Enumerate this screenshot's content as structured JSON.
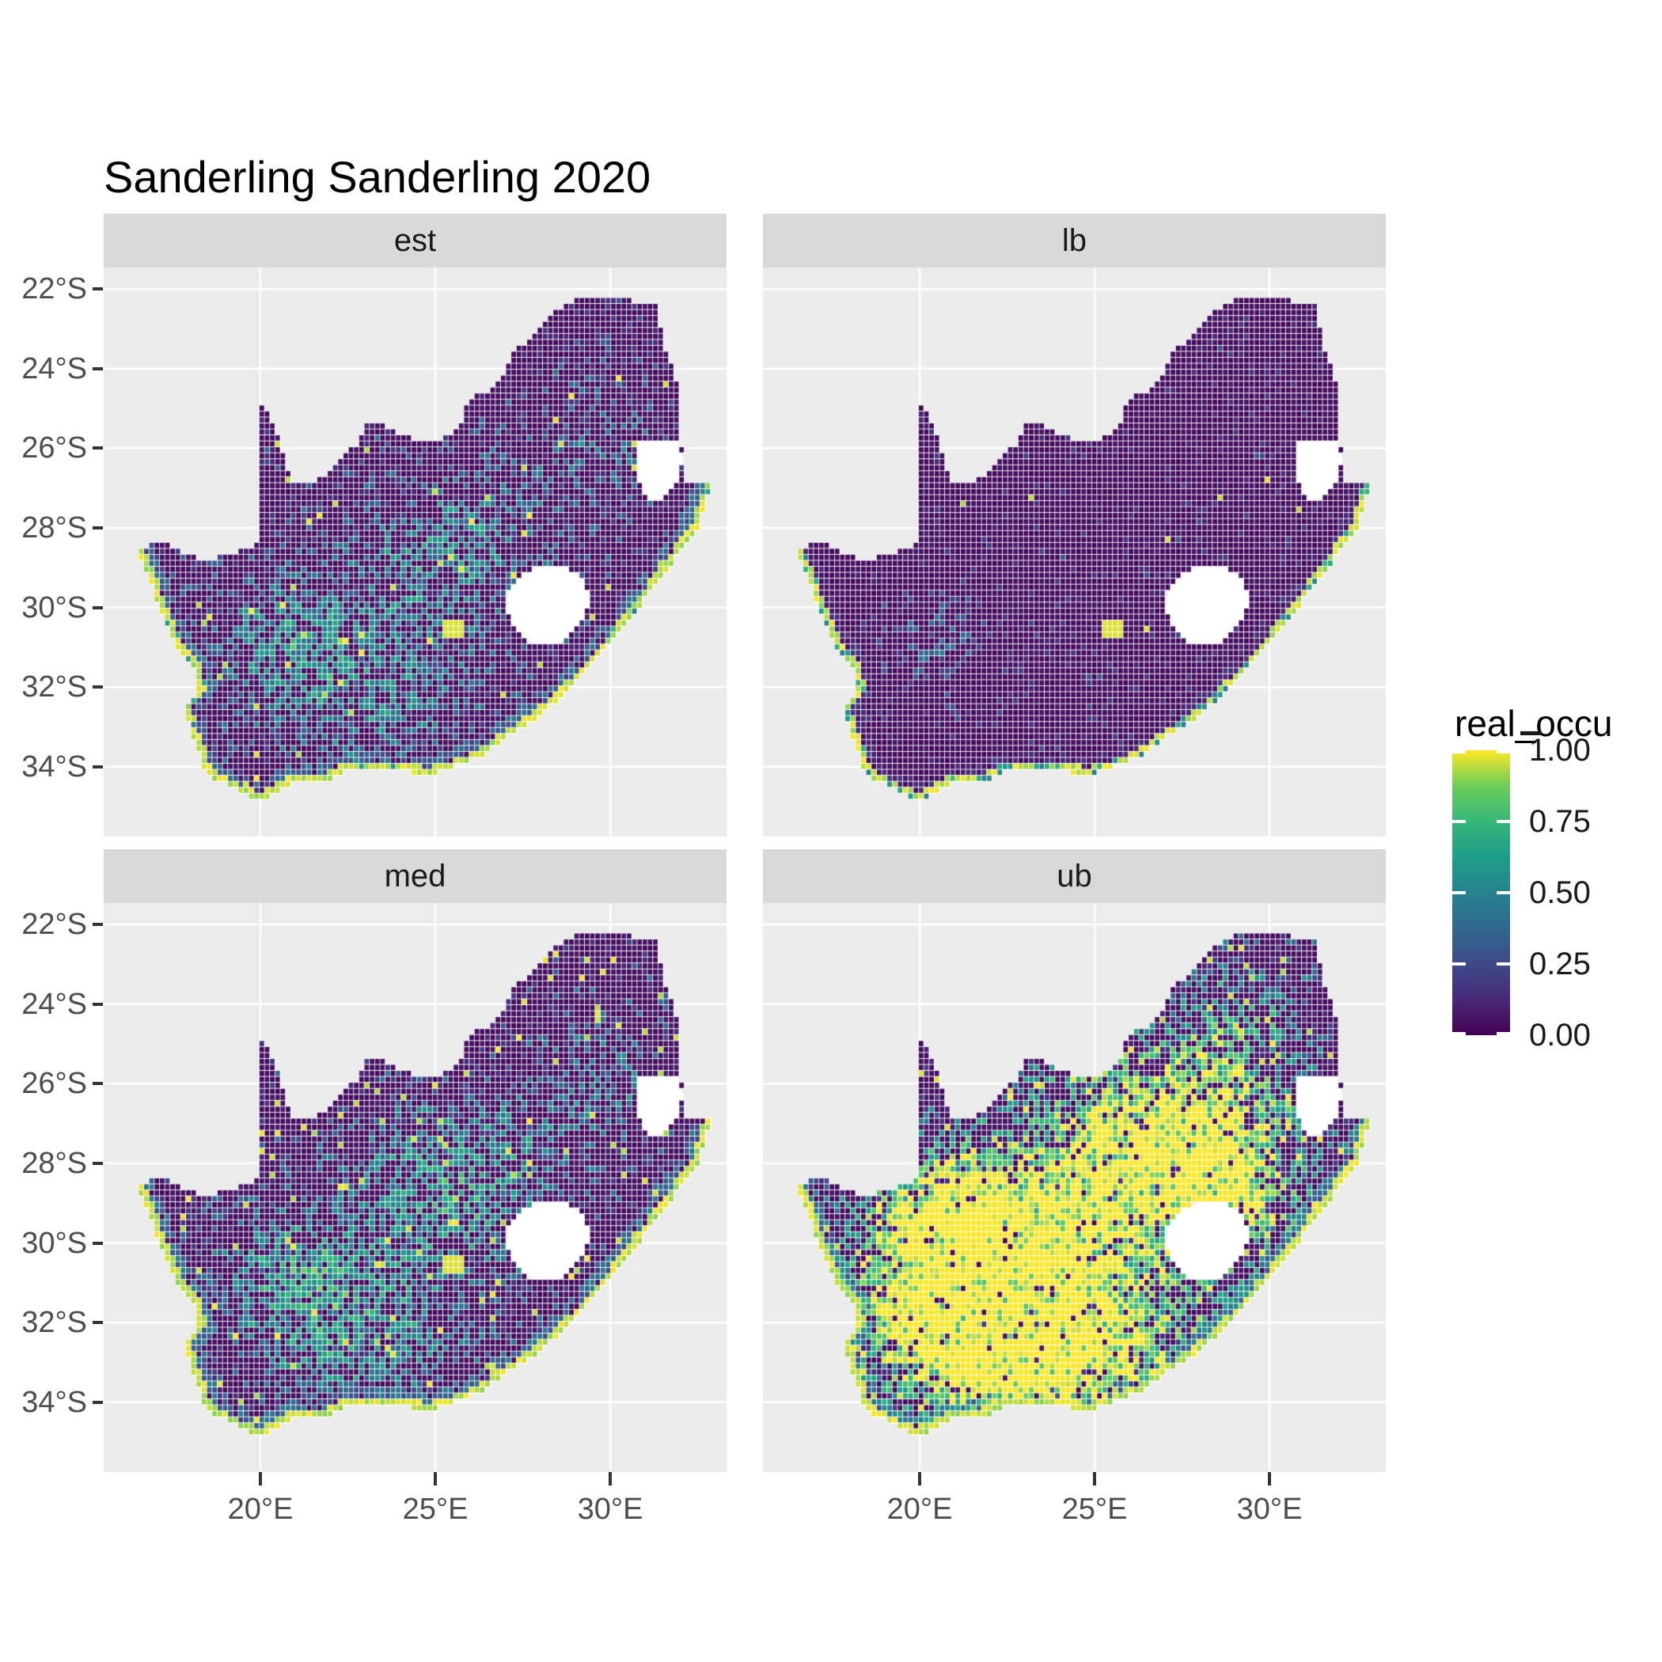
{
  "title": "Sanderling Sanderling 2020",
  "facets": [
    {
      "label": "est",
      "seed": 101,
      "base_p": 0.05,
      "yellow_p": 0.012,
      "blue_p": 0.14,
      "val_base": 0.1,
      "val_rand": 0.3,
      "w_mul": 0.22,
      "w_rand": 0.45,
      "coast_p": 0.95,
      "inner": 0.45,
      "inner_p": 0.75,
      "blobs": [
        [
          20.9,
          -30.6,
          1.6,
          1.2,
          0.45
        ],
        [
          22.8,
          -32.3,
          2.4,
          1.4,
          0.5
        ],
        [
          25.6,
          -29.3,
          1.8,
          1.4,
          0.32
        ],
        [
          26.8,
          -27.6,
          1.8,
          1.2,
          0.25
        ],
        [
          24.3,
          -28.3,
          2.0,
          1.3,
          0.22
        ],
        [
          29.6,
          -25.2,
          1.2,
          1.4,
          0.15
        ],
        [
          30.0,
          -26.3,
          1.4,
          1.0,
          0.18
        ]
      ]
    },
    {
      "label": "lb",
      "seed": 202,
      "base_p": 0.015,
      "yellow_p": 0.002,
      "blue_p": 0.06,
      "val_base": 0.08,
      "val_rand": 0.22,
      "w_mul": 0.3,
      "w_rand": 0.35,
      "coast_p": 0.7,
      "inner": 0.16,
      "inner_p": 0.5,
      "blobs": [
        [
          20.6,
          -30.7,
          0.9,
          0.7,
          0.38
        ],
        [
          24.0,
          -31.5,
          2.2,
          1.4,
          0.06
        ]
      ]
    },
    {
      "label": "med",
      "seed": 303,
      "base_p": 0.06,
      "yellow_p": 0.022,
      "blue_p": 0.15,
      "val_base": 0.11,
      "val_rand": 0.32,
      "w_mul": 0.24,
      "w_rand": 0.48,
      "coast_p": 1.0,
      "inner": 0.5,
      "inner_p": 0.75,
      "blobs": [
        [
          20.9,
          -30.6,
          1.6,
          1.2,
          0.52
        ],
        [
          22.8,
          -32.3,
          2.4,
          1.4,
          0.55
        ],
        [
          25.6,
          -29.3,
          1.8,
          1.4,
          0.36
        ],
        [
          26.8,
          -27.6,
          1.8,
          1.2,
          0.28
        ],
        [
          24.3,
          -28.3,
          2.0,
          1.3,
          0.25
        ],
        [
          29.6,
          -25.2,
          1.2,
          1.4,
          0.17
        ],
        [
          30.0,
          -26.3,
          1.4,
          1.0,
          0.2
        ]
      ]
    },
    {
      "label": "ub",
      "seed": 404,
      "base_p": 0.1,
      "yellow_p": 0.045,
      "blue_p": 0.2,
      "val_base": 0.14,
      "val_rand": 0.35,
      "w_mul": 0.5,
      "w_rand": 0.5,
      "coast_p": 1.0,
      "inner": 0.55,
      "inner_p": 0.85,
      "blobs": [
        [
          21.2,
          -31.2,
          2.4,
          1.8,
          1.0
        ],
        [
          23.8,
          -32.7,
          2.8,
          1.3,
          1.0
        ],
        [
          21.0,
          -29.0,
          1.6,
          1.2,
          0.6
        ],
        [
          26.2,
          -28.6,
          2.4,
          1.8,
          0.85
        ],
        [
          28.8,
          -25.6,
          1.5,
          1.9,
          0.55
        ],
        [
          25.5,
          -26.5,
          1.6,
          1.2,
          0.35
        ],
        [
          29.5,
          -28.8,
          1.4,
          1.2,
          0.45
        ]
      ]
    }
  ],
  "axes": {
    "y_ticks": [
      {
        "label": "22°S",
        "deg": 22
      },
      {
        "label": "24°S",
        "deg": 24
      },
      {
        "label": "26°S",
        "deg": 26
      },
      {
        "label": "28°S",
        "deg": 28
      },
      {
        "label": "30°S",
        "deg": 30
      },
      {
        "label": "32°S",
        "deg": 32
      },
      {
        "label": "34°S",
        "deg": 34
      }
    ],
    "x_ticks": [
      {
        "label": "20°E",
        "deg": 20
      },
      {
        "label": "25°E",
        "deg": 25
      },
      {
        "label": "30°E",
        "deg": 30
      }
    ]
  },
  "legend": {
    "title": "real_occu",
    "ticks": [
      {
        "label": "1.00",
        "v": 1.0
      },
      {
        "label": "0.75",
        "v": 0.75
      },
      {
        "label": "0.50",
        "v": 0.5
      },
      {
        "label": "0.25",
        "v": 0.25
      },
      {
        "label": "0.00",
        "v": 0.0
      }
    ]
  },
  "colors": {
    "panel_bg": "#EBEBEB",
    "strip_bg": "#D9D9D9",
    "grid": "#FFFFFF",
    "hole_fill": "#FFFFFF",
    "axis_text": "#4D4D4D",
    "tick": "#333333",
    "strip_text": "#1A1A1A",
    "title_text": "#000000",
    "viridis": [
      [
        0,
        "#440154"
      ],
      [
        0.125,
        "#482878"
      ],
      [
        0.25,
        "#3E4A89"
      ],
      [
        0.375,
        "#31688E"
      ],
      [
        0.5,
        "#26828E"
      ],
      [
        0.625,
        "#1F9E89"
      ],
      [
        0.75,
        "#35B779"
      ],
      [
        0.875,
        "#6DCD59"
      ],
      [
        1,
        "#FDE725"
      ]
    ]
  },
  "map": {
    "cell_deg": 0.15,
    "outline": [
      [
        16.45,
        -28.58
      ],
      [
        17.15,
        -28.35
      ],
      [
        17.75,
        -28.6
      ],
      [
        18.35,
        -28.85
      ],
      [
        19.1,
        -28.7
      ],
      [
        19.6,
        -28.5
      ],
      [
        20.0,
        -28.38
      ],
      [
        20.0,
        -24.78
      ],
      [
        20.35,
        -25.35
      ],
      [
        20.7,
        -26.2
      ],
      [
        20.85,
        -26.8
      ],
      [
        21.45,
        -26.85
      ],
      [
        21.95,
        -26.65
      ],
      [
        22.35,
        -26.15
      ],
      [
        22.8,
        -25.95
      ],
      [
        23.1,
        -25.3
      ],
      [
        23.7,
        -25.5
      ],
      [
        24.3,
        -25.75
      ],
      [
        24.9,
        -25.8
      ],
      [
        25.5,
        -25.7
      ],
      [
        25.8,
        -25.35
      ],
      [
        25.95,
        -24.75
      ],
      [
        26.5,
        -24.6
      ],
      [
        26.9,
        -24.25
      ],
      [
        27.25,
        -23.6
      ],
      [
        27.9,
        -23.15
      ],
      [
        28.35,
        -22.65
      ],
      [
        29.0,
        -22.25
      ],
      [
        29.4,
        -22.15
      ],
      [
        30.0,
        -22.25
      ],
      [
        30.6,
        -22.3
      ],
      [
        31.3,
        -22.4
      ],
      [
        31.65,
        -23.7
      ],
      [
        31.95,
        -24.4
      ],
      [
        32.0,
        -25.6
      ],
      [
        32.15,
        -26.85
      ],
      [
        32.9,
        -26.88
      ],
      [
        32.55,
        -27.95
      ],
      [
        32.0,
        -28.6
      ],
      [
        31.3,
        -29.45
      ],
      [
        30.6,
        -30.25
      ],
      [
        29.9,
        -31.05
      ],
      [
        29.2,
        -31.75
      ],
      [
        28.5,
        -32.35
      ],
      [
        27.8,
        -32.85
      ],
      [
        27.1,
        -33.25
      ],
      [
        26.3,
        -33.75
      ],
      [
        25.6,
        -34.0
      ],
      [
        24.8,
        -34.2
      ],
      [
        23.95,
        -34.1
      ],
      [
        23.3,
        -34.05
      ],
      [
        22.5,
        -34.1
      ],
      [
        21.8,
        -34.4
      ],
      [
        20.9,
        -34.4
      ],
      [
        20.0,
        -34.86
      ],
      [
        19.35,
        -34.6
      ],
      [
        18.8,
        -34.35
      ],
      [
        18.45,
        -34.25
      ],
      [
        18.35,
        -33.85
      ],
      [
        18.05,
        -33.15
      ],
      [
        17.85,
        -32.5
      ],
      [
        18.25,
        -32.05
      ],
      [
        18.1,
        -31.55
      ],
      [
        17.55,
        -30.9
      ],
      [
        17.1,
        -30.0
      ],
      [
        16.85,
        -29.3
      ]
    ],
    "coast_start": 36,
    "holes": {
      "lesotho": [
        [
          27.1,
          -29.6
        ],
        [
          27.5,
          -29.15
        ],
        [
          28.1,
          -28.95
        ],
        [
          28.75,
          -29.0
        ],
        [
          29.3,
          -29.35
        ],
        [
          29.45,
          -29.85
        ],
        [
          29.2,
          -30.4
        ],
        [
          28.7,
          -30.85
        ],
        [
          28.0,
          -31.0
        ],
        [
          27.4,
          -30.7
        ],
        [
          27.05,
          -30.15
        ]
      ],
      "eswatini": [
        [
          30.85,
          -25.75
        ],
        [
          31.9,
          -25.75
        ],
        [
          32.1,
          -26.3
        ],
        [
          31.95,
          -26.85
        ],
        [
          31.55,
          -27.25
        ],
        [
          31.1,
          -27.3
        ],
        [
          30.8,
          -26.85
        ],
        [
          30.75,
          -26.25
        ]
      ]
    },
    "features": [
      {
        "lon": 25.5,
        "lat": -30.55,
        "r": 0.3,
        "v": 0.97
      }
    ]
  },
  "chart_data": {
    "type": "heatmap",
    "title": "Sanderling Sanderling 2020",
    "facets": [
      "est",
      "lb",
      "med",
      "ub"
    ],
    "x_axis": {
      "ticks": [
        "20°E",
        "25°E",
        "30°E"
      ],
      "range_deg_east": [
        15.5,
        33.3
      ]
    },
    "y_axis": {
      "ticks": [
        "22°S",
        "24°S",
        "26°S",
        "28°S",
        "30°S",
        "32°S",
        "34°S"
      ],
      "range_deg_south": [
        21.5,
        35.8
      ]
    },
    "legend": {
      "title": "real_occu",
      "breaks": [
        0.0,
        0.25,
        0.5,
        0.75,
        1.0
      ],
      "range": [
        0,
        1
      ],
      "palette": "viridis",
      "position": "right"
    },
    "region": "South Africa raster of real_occu (occupancy 0-1), Lesotho and Eswatini shown as white holes",
    "facet_character": {
      "est": "mostly near-0 (dark purple), moderate teal speckling concentrated in the southwest interior, continuous yellow (~1.0) coastline fringe",
      "lb": "near-0 everywhere, very sparse faint speckles, small green cluster near 20.5E 30.7S, yellow streak near 25.5E 30.5S, thin patchy yellow coast",
      "med": "like est but slightly denser speckling with more yellow hotspots, full yellow coastline",
      "ub": "high values: broad yellow-green band across southern interior (Karoo and Free State) extending northeast along escarpment, Kalahari northwest and east-coast interior remain dark, full yellow coastline"
    }
  }
}
